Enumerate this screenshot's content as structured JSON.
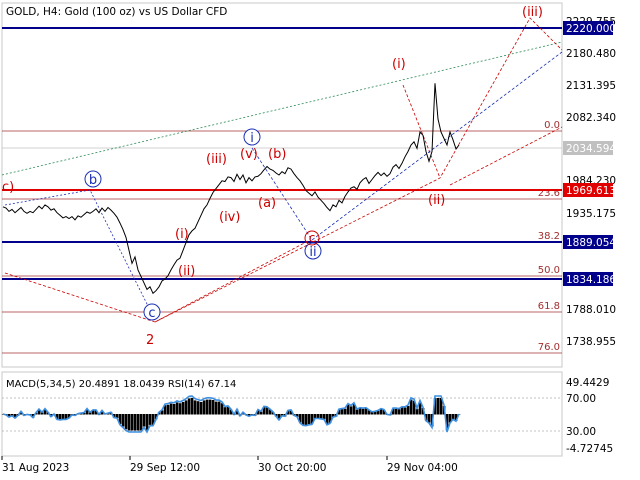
{
  "header": {
    "title": "GOLD, H4:  Gold (100 oz) vs US Dollar CFD"
  },
  "price_axis": {
    "labels": [
      "2229.755",
      "2180.480",
      "2131.395",
      "2082.340",
      "1984.230",
      "1935.175",
      "1788.010",
      "1738.955"
    ],
    "tags": [
      {
        "value": "2220.000",
        "style": "blue"
      },
      {
        "value": "2034.594",
        "style": "gray"
      },
      {
        "value": "1969.613",
        "style": "red"
      },
      {
        "value": "1889.054",
        "style": "blue"
      },
      {
        "value": "1834.186",
        "style": "blue"
      }
    ]
  },
  "fib_levels": [
    "0.0",
    "23.6",
    "38.2",
    "50.0",
    "61.8",
    "76.0"
  ],
  "time_axis": {
    "labels": [
      "31 Aug 2023",
      "29 Sep 12:00",
      "30 Oct 20:00",
      "29 Nov 04:00"
    ]
  },
  "waves": {
    "circled_blue": [
      "b",
      "c",
      "i",
      "ii"
    ],
    "red_plain": [
      "c)",
      "(iii)",
      "(v)",
      "(b)",
      "(iv)",
      "(a)",
      "(i)",
      "(ii)",
      "(i)",
      "(ii)",
      "(iii)",
      "(i)",
      "(ii)",
      "2"
    ],
    "red_circled": [
      "c"
    ]
  },
  "indicator": {
    "label": "MACD(5,34,5) 20.4891 18.0439 RSI(14) 67.14",
    "axis": [
      "49.4429",
      "70.00",
      "30.00",
      "-4.72745"
    ]
  },
  "colors": {
    "price_line": "#000000",
    "wave_red": "#cc0000",
    "wave_blue": "#1a2fb5",
    "resistance_blue": "#00008b",
    "support_red": "#e00000",
    "green_trend": "#2e8b57",
    "rsi_line": "#3d8fe0",
    "macd_bars": "#000000"
  },
  "chart_data": {
    "type": "line",
    "symbol": "GOLD",
    "timeframe": "H4",
    "ylim": [
      1710,
      2250
    ],
    "x": [
      0,
      3,
      6,
      9,
      12,
      15,
      18,
      21,
      24,
      27,
      30,
      33,
      36,
      39,
      42,
      45,
      48,
      51,
      54,
      57,
      60,
      63,
      66,
      69,
      72,
      75,
      78,
      81,
      84,
      87,
      90,
      93,
      96,
      99,
      102,
      105,
      108,
      111,
      114,
      117,
      120,
      123,
      126,
      129,
      132,
      135,
      138,
      141,
      144,
      147,
      150,
      153,
      156,
      159,
      162,
      165,
      168,
      171,
      174,
      177,
      180,
      183,
      186,
      189,
      192,
      195,
      198,
      201,
      204,
      207,
      210,
      213,
      216,
      219,
      222,
      225,
      228,
      231,
      234,
      237,
      240,
      243,
      246,
      249,
      252,
      255,
      258,
      261,
      264,
      267,
      270,
      273,
      276,
      279,
      282,
      285,
      288,
      291,
      294,
      297,
      300,
      303,
      306,
      309,
      312,
      315,
      318,
      321,
      324,
      327,
      330,
      333,
      336,
      339,
      342,
      345,
      348,
      351,
      354,
      357,
      360,
      363,
      366,
      369,
      372,
      375,
      378,
      381,
      384,
      387,
      390,
      393,
      396,
      399,
      402,
      405,
      408,
      411,
      414,
      417,
      420,
      423,
      426,
      429,
      432,
      435,
      438,
      441,
      444,
      447,
      450,
      453,
      456
    ],
    "close": [
      1945,
      1943,
      1938,
      1941,
      1936,
      1940,
      1944,
      1938,
      1935,
      1938,
      1936,
      1941,
      1946,
      1942,
      1948,
      1945,
      1940,
      1942,
      1936,
      1932,
      1928,
      1930,
      1927,
      1930,
      1925,
      1931,
      1929,
      1933,
      1937,
      1935,
      1938,
      1942,
      1936,
      1943,
      1938,
      1944,
      1940,
      1935,
      1929,
      1920,
      1910,
      1898,
      1878,
      1858,
      1868,
      1848,
      1838,
      1828,
      1818,
      1822,
      1812,
      1816,
      1822,
      1831,
      1834,
      1839,
      1848,
      1856,
      1863,
      1866,
      1878,
      1890,
      1902,
      1908,
      1912,
      1922,
      1932,
      1942,
      1948,
      1958,
      1967,
      1973,
      1979,
      1985,
      1984,
      1991,
      1990,
      1984,
      1995,
      1987,
      1994,
      1982,
      1990,
      1985,
      1991,
      1992,
      1996,
      2002,
      2007,
      2003,
      2001,
      1997,
      1994,
      1999,
      1996,
      2005,
      2003,
      1996,
      1990,
      1985,
      1978,
      1970,
      1966,
      1962,
      1968,
      1960,
      1955,
      1950,
      1944,
      1939,
      1948,
      1945,
      1955,
      1951,
      1961,
      1968,
      1974,
      1976,
      1972,
      1982,
      1987,
      1990,
      1981,
      1987,
      1993,
      1998,
      1993,
      1997,
      1992,
      1996,
      2006,
      2010,
      2004,
      2012,
      2022,
      2030,
      2040,
      2045,
      2035,
      2060,
      2055,
      2030,
      2015,
      2030,
      2135,
      2080,
      2060,
      2050,
      2040,
      2060,
      2048,
      2034,
      2040
    ]
  }
}
